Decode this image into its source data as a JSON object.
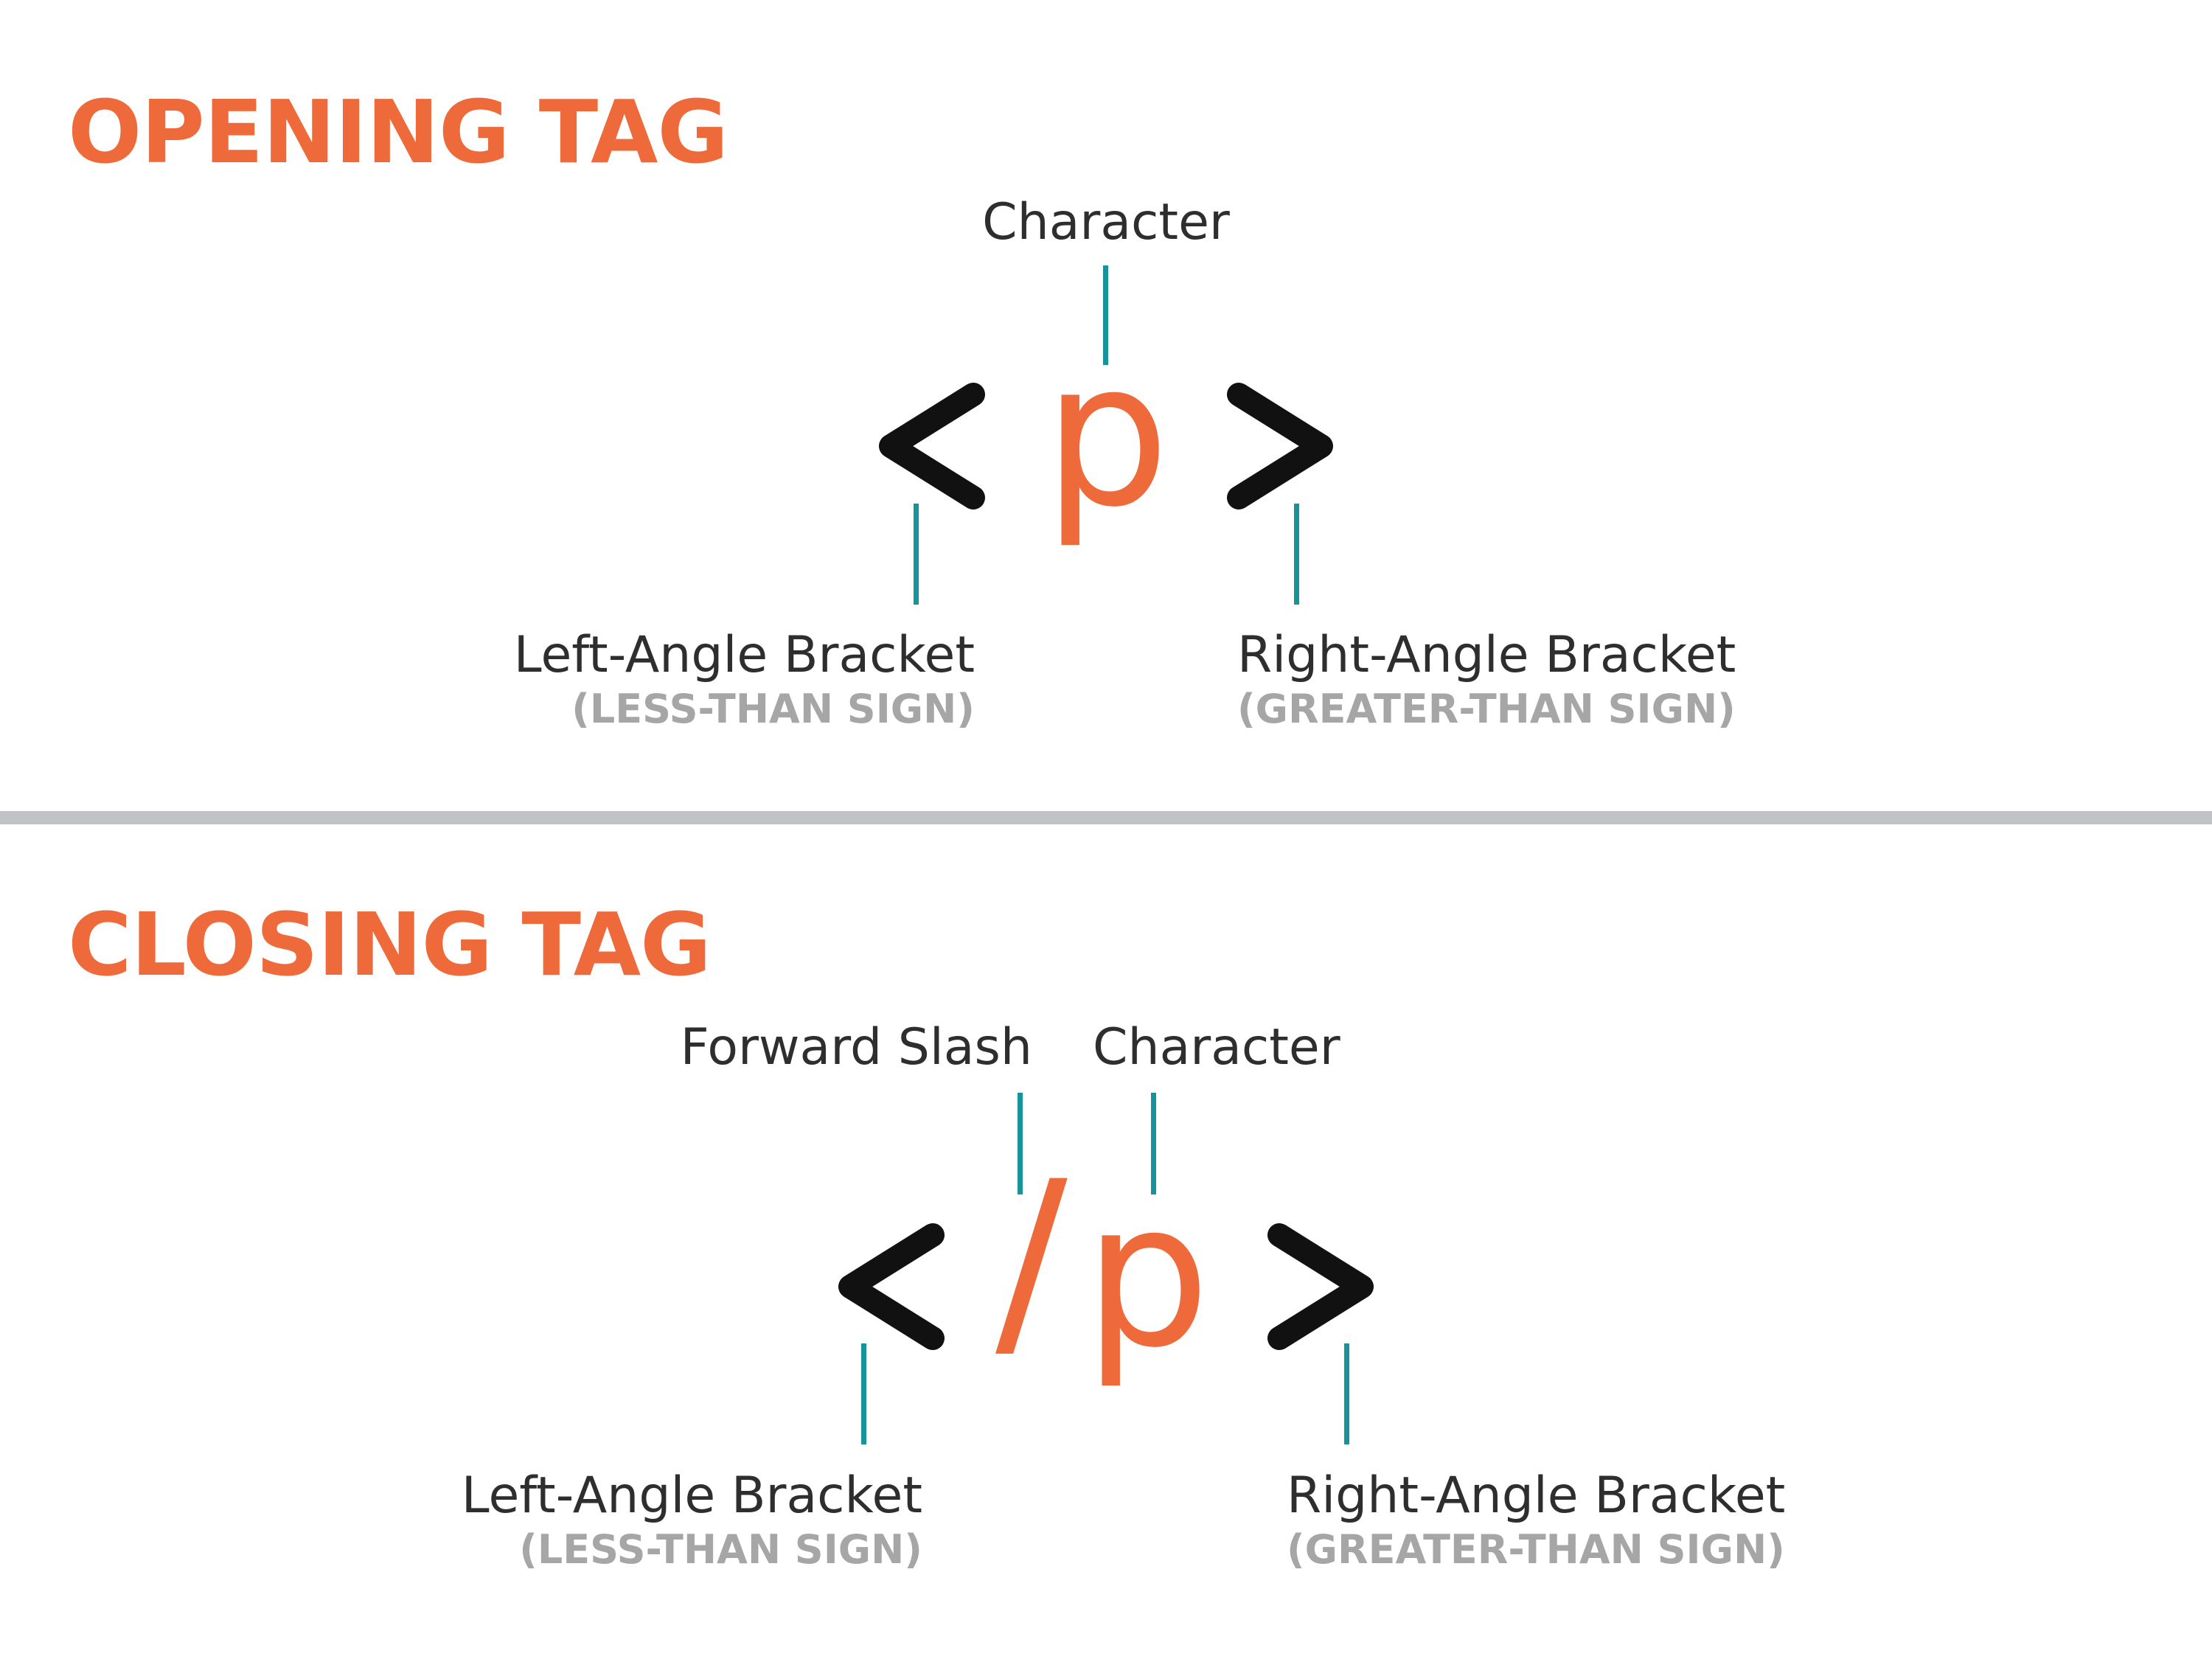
{
  "colors": {
    "accent": "#ef6a3a",
    "connector": "#17939b",
    "bracket": "#111111",
    "label": "#2e2e2e",
    "sublabel": "#a6a6a6",
    "divider": "#c0c2c5"
  },
  "opening": {
    "title": "OPENING TAG",
    "character_glyph": "p",
    "character_label": "Character",
    "left_bracket": {
      "name": "Left-Angle Bracket",
      "note": "(LESS-THAN SIGN)"
    },
    "right_bracket": {
      "name": "Right-Angle Bracket",
      "note": "(GREATER-THAN SIGN)"
    }
  },
  "closing": {
    "title": "CLOSING TAG",
    "slash_glyph": "/",
    "character_glyph": "p",
    "slash_label": "Forward Slash",
    "character_label": "Character",
    "left_bracket": {
      "name": "Left-Angle Bracket",
      "note": "(LESS-THAN SIGN)"
    },
    "right_bracket": {
      "name": "Right-Angle Bracket",
      "note": "(GREATER-THAN SIGN)"
    }
  }
}
